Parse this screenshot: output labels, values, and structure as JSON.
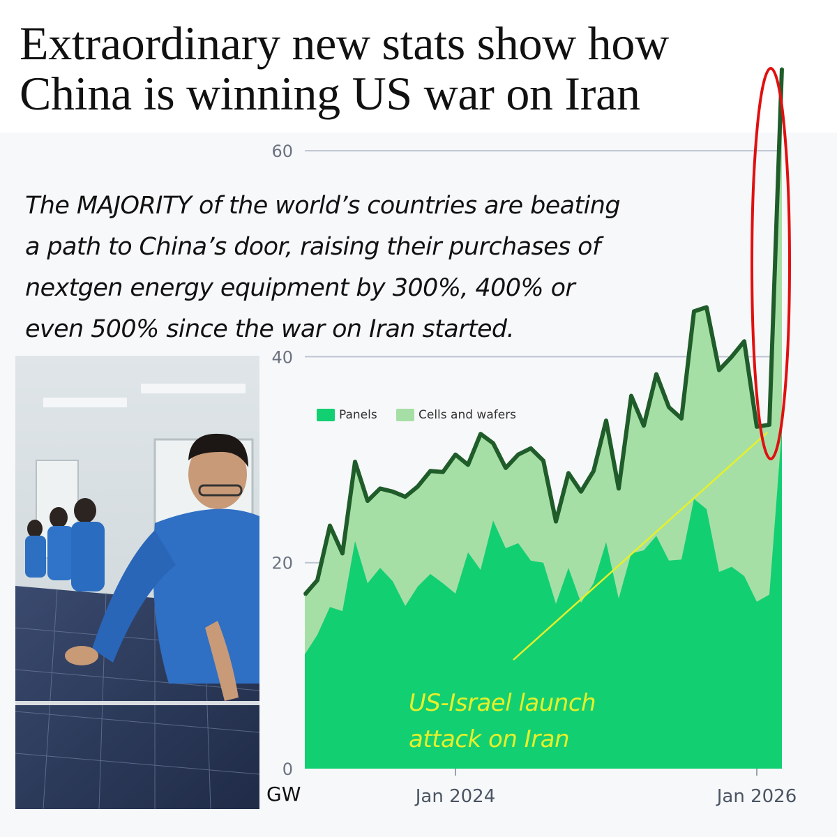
{
  "headline": {
    "line1": "Extraordinary new stats show how",
    "line2": "China is winning US war on Iran"
  },
  "subhead": {
    "line1": "The MAJORITY of the world’s countries are beating",
    "line2": "a path to China’s door, raising their purchases of",
    "line3": "nextgen energy equipment by 300%, 400% or",
    "line4": "even 500% since the war on Iran started."
  },
  "annotation": {
    "line1": "US-Israel launch",
    "line2": "attack on Iran"
  },
  "unit_label": "GW",
  "colors": {
    "panels": "#12cf72",
    "cells_and_wafers": "#a6dfa6",
    "total_line": "#1f5c2a",
    "highlight_ellipse": "#e01010",
    "annotation": "#e6f02a",
    "gridline": "#bcc4d0"
  },
  "chart_data": {
    "type": "area",
    "stacked": true,
    "ylim": [
      0,
      68
    ],
    "yticks": [
      0,
      20,
      40,
      60
    ],
    "ytick_labels": [
      "0",
      "20",
      "40",
      "60"
    ],
    "xtick_labels": [
      "Jan 2024",
      "Jan 2026"
    ],
    "grid": "horizontal",
    "legend": "top-left",
    "x_start": "2023-01",
    "x": [
      "2023-01",
      "2023-02",
      "2023-03",
      "2023-04",
      "2023-05",
      "2023-06",
      "2023-07",
      "2023-08",
      "2023-09",
      "2023-10",
      "2023-11",
      "2023-12",
      "2024-01",
      "2024-02",
      "2024-03",
      "2024-04",
      "2024-05",
      "2024-06",
      "2024-07",
      "2024-08",
      "2024-09",
      "2024-10",
      "2024-11",
      "2024-12",
      "2025-01",
      "2025-02",
      "2025-03",
      "2025-04",
      "2025-05",
      "2025-06",
      "2025-07",
      "2025-08",
      "2025-09",
      "2025-10",
      "2025-11",
      "2025-12",
      "2026-01",
      "2026-02",
      "2026-03"
    ],
    "series": [
      {
        "name": "Panels",
        "values": [
          11.1,
          13.0,
          15.7,
          15.3,
          22.1,
          18.0,
          19.5,
          18.2,
          15.8,
          17.7,
          18.9,
          18.0,
          17.0,
          21.0,
          19.3,
          24.1,
          21.4,
          21.9,
          20.2,
          20.0,
          16.0,
          19.5,
          16.1,
          18.0,
          22.0,
          16.5,
          20.9,
          21.2,
          22.6,
          20.2,
          20.3,
          26.2,
          25.2,
          19.1,
          19.6,
          18.7,
          16.2,
          16.9,
          33.0
        ]
      },
      {
        "name": "Cells and wafers",
        "values": [
          5.8,
          5.3,
          7.9,
          5.6,
          7.7,
          8.0,
          7.7,
          8.7,
          10.6,
          9.7,
          10.0,
          10.8,
          13.5,
          8.5,
          13.2,
          7.5,
          7.8,
          8.6,
          10.9,
          9.9,
          8.0,
          9.2,
          10.8,
          10.9,
          11.8,
          10.7,
          15.3,
          12.1,
          15.7,
          14.9,
          13.7,
          18.2,
          19.6,
          19.6,
          20.4,
          22.8,
          17.0,
          16.5,
          35.0
        ]
      }
    ]
  }
}
